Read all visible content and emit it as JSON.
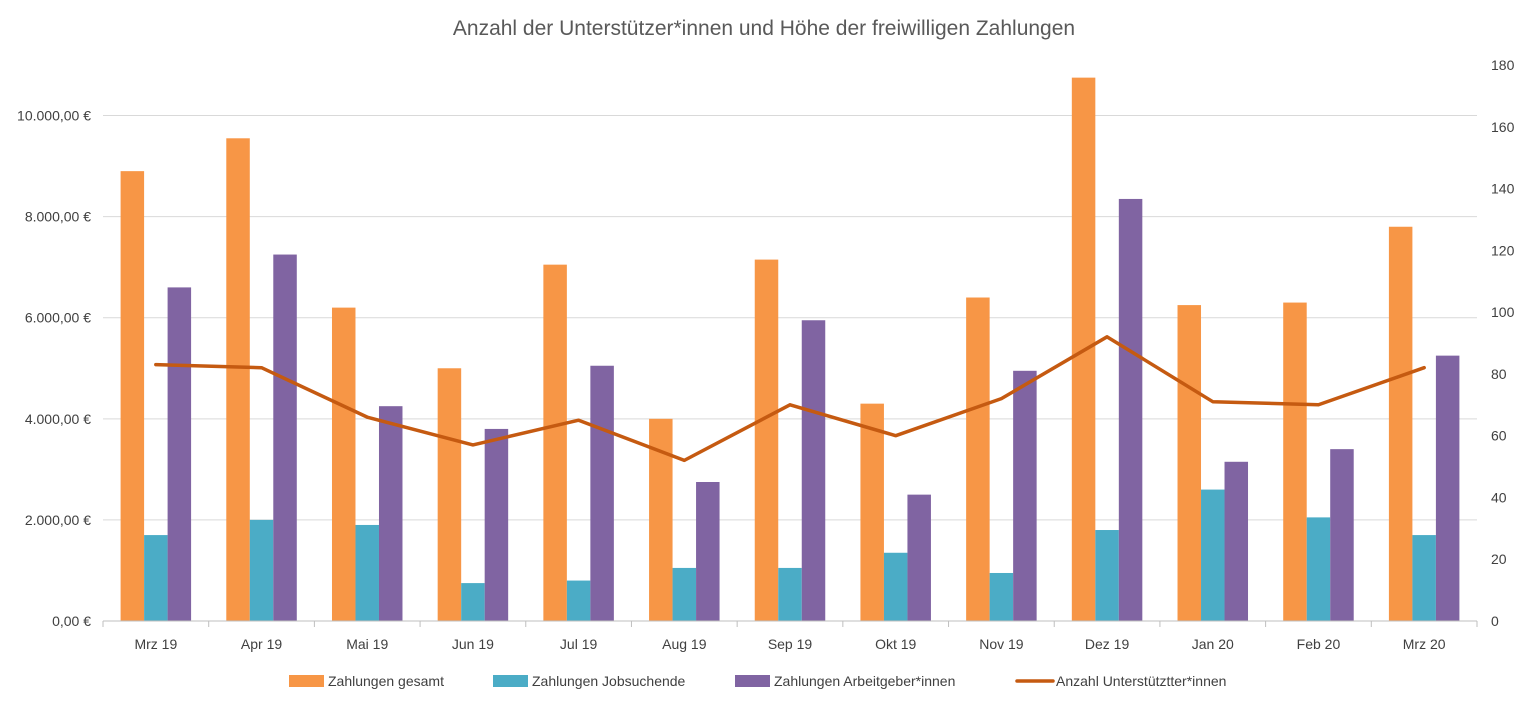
{
  "chart_data": {
    "type": "bar",
    "title": "Anzahl der Unterstützer*innen und Höhe der freiwilligen Zahlungen",
    "categories": [
      "Mrz 19",
      "Apr 19",
      "Mai 19",
      "Jun 19",
      "Jul 19",
      "Aug 19",
      "Sep 19",
      "Okt 19",
      "Nov 19",
      "Dez 19",
      "Jan 20",
      "Feb 20",
      "Mrz 20"
    ],
    "series": [
      {
        "name": "Zahlungen gesamt",
        "type": "bar",
        "axis": "left",
        "color": "#F79646",
        "values": [
          8900,
          9550,
          6200,
          5000,
          7050,
          4000,
          7150,
          4300,
          6400,
          10750,
          6250,
          6300,
          7800
        ]
      },
      {
        "name": "Zahlungen Jobsuchende",
        "type": "bar",
        "axis": "left",
        "color": "#4BACC6",
        "values": [
          1700,
          2000,
          1900,
          750,
          800,
          1050,
          1050,
          1350,
          950,
          1800,
          2600,
          2050,
          1700
        ]
      },
      {
        "name": "Zahlungen Arbeitgeber*innen",
        "type": "bar",
        "axis": "left",
        "color": "#8064A2",
        "values": [
          6600,
          7250,
          4250,
          3800,
          5050,
          2750,
          5950,
          2500,
          4950,
          8350,
          3150,
          3400,
          5250
        ]
      },
      {
        "name": "Anzahl Unterstütztter*innen",
        "type": "line",
        "axis": "right",
        "color": "#C55A11",
        "values": [
          83,
          82,
          66,
          57,
          65,
          52,
          70,
          60,
          72,
          92,
          71,
          70,
          82
        ]
      }
    ],
    "y_left": {
      "min": 0,
      "max": 11000,
      "ticks": [
        0,
        2000,
        4000,
        6000,
        8000,
        10000
      ],
      "tick_labels": [
        "0,00 €",
        "2.000,00 €",
        "4.000,00 €",
        "6.000,00 €",
        "8.000,00 €",
        "10.000,00 €"
      ]
    },
    "y_right": {
      "min": 0,
      "max": 180,
      "ticks": [
        0,
        20,
        40,
        60,
        80,
        100,
        120,
        140,
        160,
        180
      ],
      "tick_labels": [
        "0",
        "20",
        "40",
        "60",
        "80",
        "100",
        "120",
        "140",
        "160",
        "180"
      ]
    },
    "grid": true,
    "legend_position": "bottom"
  }
}
